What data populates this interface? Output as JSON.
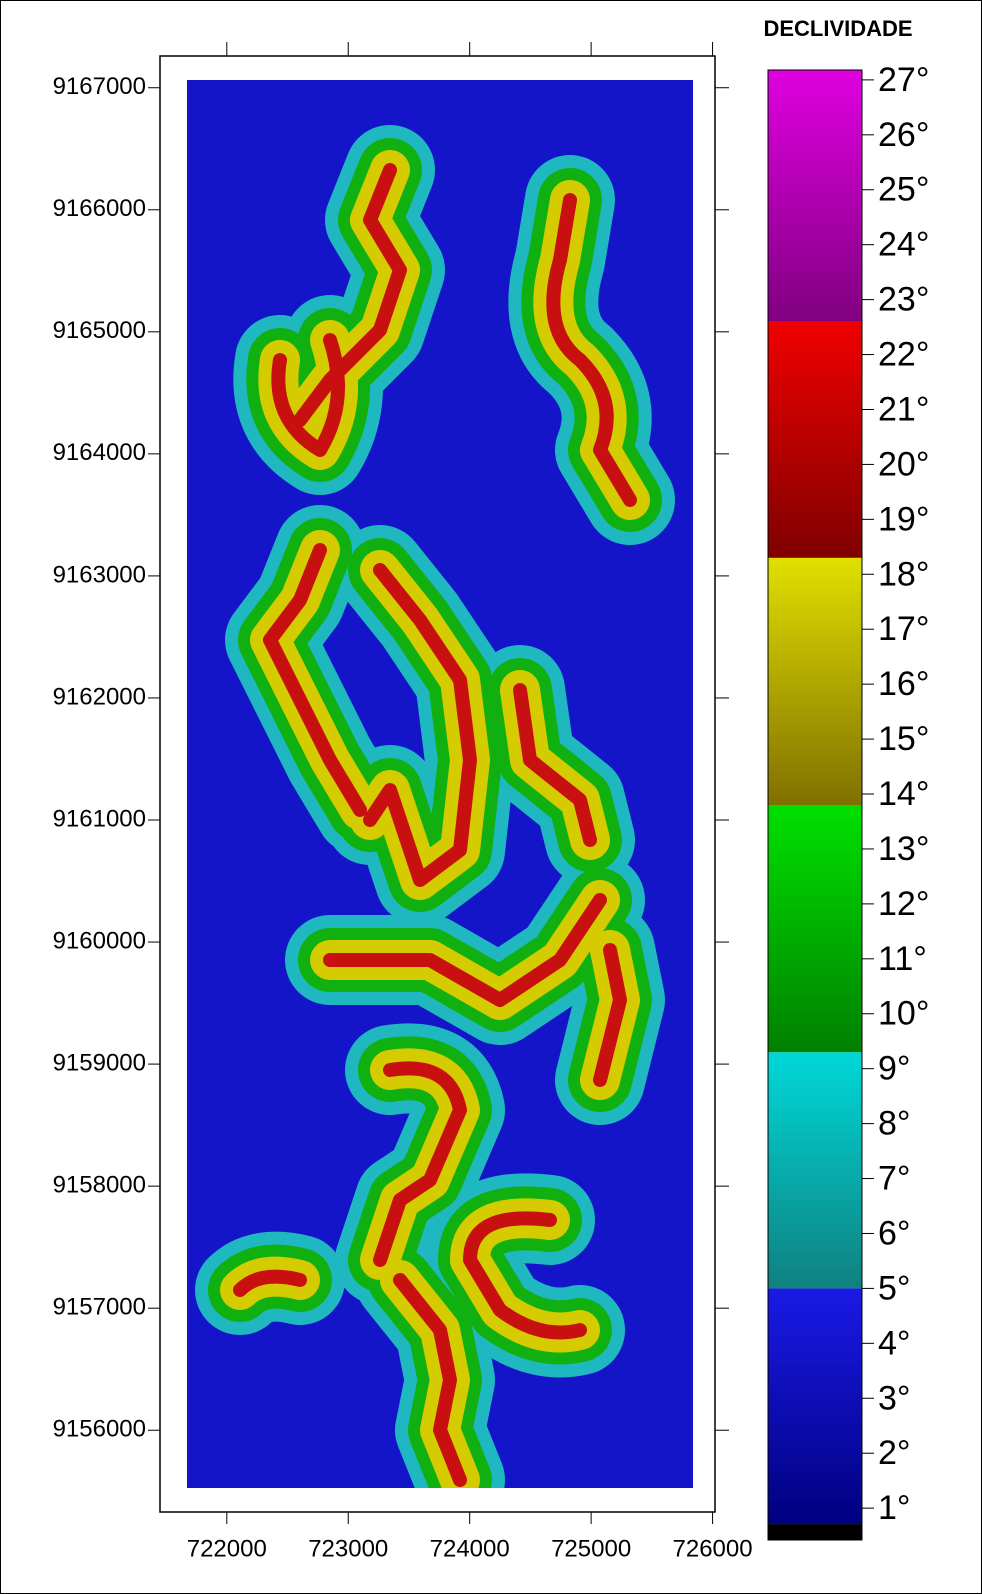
{
  "chart_data": {
    "type": "contour",
    "title": "DECLIVIDADE",
    "xlim": [
      721450,
      726020
    ],
    "xticks": [
      722000,
      723000,
      724000,
      725000,
      726000
    ],
    "ylim": [
      9155330,
      9167260
    ],
    "yticks": [
      9156000,
      9157000,
      9158000,
      9159000,
      9160000,
      9161000,
      9162000,
      9163000,
      9164000,
      9165000,
      9166000,
      9167000
    ],
    "colorbar": {
      "lim": [
        0.42,
        27.18
      ],
      "ticks": [
        {
          "value": 1,
          "label": "1°"
        },
        {
          "value": 2,
          "label": "2°"
        },
        {
          "value": 3,
          "label": "3°"
        },
        {
          "value": 4,
          "label": "4°"
        },
        {
          "value": 5,
          "label": "5°"
        },
        {
          "value": 6,
          "label": "6°"
        },
        {
          "value": 7,
          "label": "7°"
        },
        {
          "value": 8,
          "label": "8°"
        },
        {
          "value": 9,
          "label": "9°"
        },
        {
          "value": 10,
          "label": "10°"
        },
        {
          "value": 11,
          "label": "11°"
        },
        {
          "value": 12,
          "label": "12°"
        },
        {
          "value": 13,
          "label": "13°"
        },
        {
          "value": 14,
          "label": "14°"
        },
        {
          "value": 15,
          "label": "15°"
        },
        {
          "value": 16,
          "label": "16°"
        },
        {
          "value": 17,
          "label": "17°"
        },
        {
          "value": 18,
          "label": "18°"
        },
        {
          "value": 19,
          "label": "19°"
        },
        {
          "value": 20,
          "label": "20°"
        },
        {
          "value": 21,
          "label": "21°"
        },
        {
          "value": 22,
          "label": "22°"
        },
        {
          "value": 23,
          "label": "23°"
        },
        {
          "value": 24,
          "label": "24°"
        },
        {
          "value": 25,
          "label": "25°"
        },
        {
          "value": 26,
          "label": "26°"
        },
        {
          "value": 27,
          "label": "27°"
        }
      ],
      "bands": [
        {
          "min": 0.42,
          "max": 0.71,
          "colors": [
            "#000000",
            "#000000"
          ]
        },
        {
          "min": 0.71,
          "max": 5.0,
          "colors": [
            "#000080",
            "#1a1ae6"
          ]
        },
        {
          "min": 5.0,
          "max": 9.3,
          "colors": [
            "#108080",
            "#00d8d8"
          ]
        },
        {
          "min": 9.3,
          "max": 13.8,
          "colors": [
            "#008000",
            "#00e000"
          ]
        },
        {
          "min": 13.8,
          "max": 18.3,
          "colors": [
            "#807000",
            "#e0e000"
          ]
        },
        {
          "min": 18.3,
          "max": 22.6,
          "colors": [
            "#800000",
            "#f00000"
          ]
        },
        {
          "min": 22.6,
          "max": 27.18,
          "colors": [
            "#800080",
            "#e000e0"
          ]
        }
      ]
    }
  }
}
